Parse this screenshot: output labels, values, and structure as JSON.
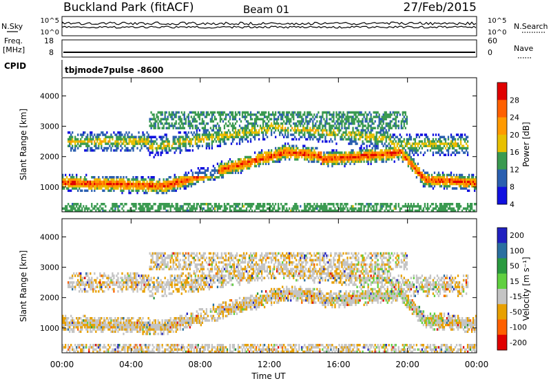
{
  "header": {
    "title": "Buckland Park (fitACF)",
    "beam": "Beam 01",
    "date": "27/Feb/2015"
  },
  "top_panel": {
    "left_label": "N.Sky",
    "right_label": "N.Search",
    "left_ticks": [
      "10^5",
      "10^0"
    ],
    "right_ticks": [
      "10^5",
      "10^0"
    ]
  },
  "freq_panel": {
    "left_label": "Freq.",
    "left_unit": "[MHz]",
    "right_label": "Nave",
    "left_ticks": [
      "18",
      "8"
    ],
    "right_ticks": [
      "60",
      "0"
    ]
  },
  "cpid": {
    "label": "CPID",
    "program": "tbjmode7pulse -8600"
  },
  "chart_data": [
    {
      "type": "heatmap",
      "ylabel": "Slant Range [km]",
      "xlabel": "Time UT",
      "x_ticks": [
        "00:00",
        "04:00",
        "08:00",
        "12:00",
        "16:00",
        "20:00",
        "00:00"
      ],
      "x_hours": [
        0,
        4,
        8,
        12,
        16,
        20,
        24
      ],
      "y_ticks": [
        1000,
        2000,
        3000,
        4000
      ],
      "ylim": [
        180,
        4600
      ],
      "xlim": [
        0,
        24
      ],
      "colorbar": {
        "label": "Power [dB]",
        "ticks": [
          "28",
          "24",
          "20",
          "16",
          "12",
          "8",
          "4"
        ],
        "colors": [
          "#e00000",
          "#ff6000",
          "#ff9a00",
          "#e8c000",
          "#3a9a50",
          "#2a5fb0",
          "#1010e0"
        ]
      }
    },
    {
      "type": "heatmap",
      "ylabel": "Slant Range [km]",
      "xlabel": "Time UT",
      "x_ticks": [
        "00:00",
        "04:00",
        "08:00",
        "12:00",
        "16:00",
        "20:00",
        "00:00"
      ],
      "x_hours": [
        0,
        4,
        8,
        12,
        16,
        20,
        24
      ],
      "y_ticks": [
        1000,
        2000,
        3000,
        4000
      ],
      "ylim": [
        180,
        4600
      ],
      "xlim": [
        0,
        24
      ],
      "colorbar": {
        "label": "Velocity [m s⁻¹]",
        "ticks": [
          "200",
          "100",
          "50",
          "15",
          "-15",
          "-50",
          "-100",
          "-200"
        ],
        "colors": [
          "#2020c0",
          "#2a6fa0",
          "#2a9a40",
          "#60d040",
          "#c4c4c4",
          "#e8a000",
          "#ff6000",
          "#e00000"
        ]
      }
    }
  ],
  "time_label": "Time UT"
}
